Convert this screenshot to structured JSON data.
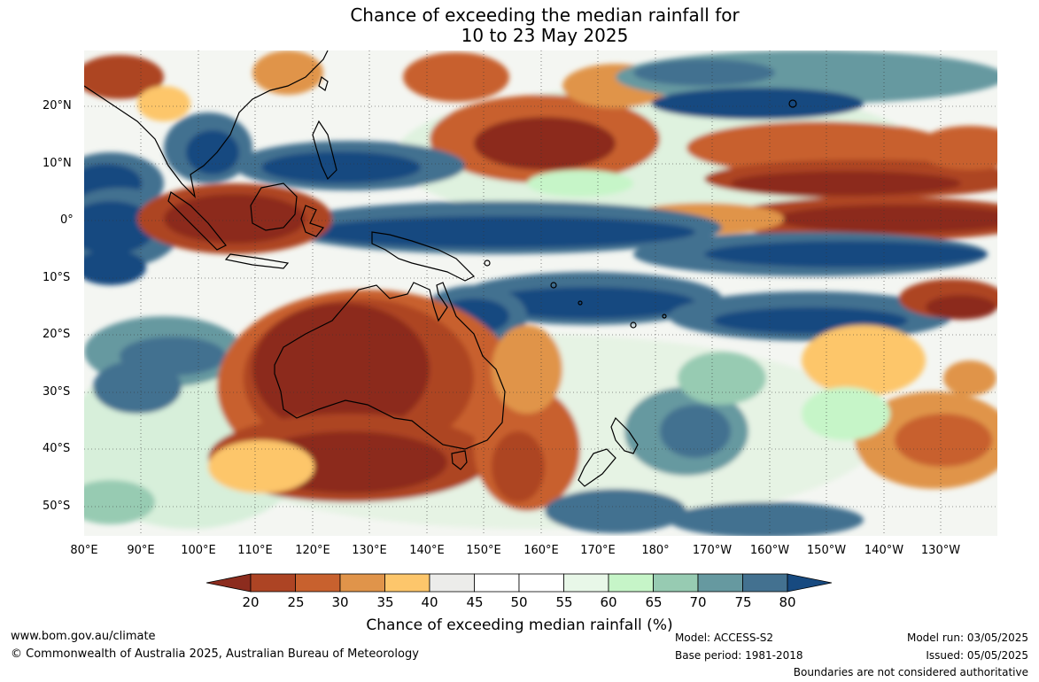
{
  "title": {
    "line1": "Chance of exceeding the median rainfall for",
    "line2": "10 to 23 May 2025"
  },
  "map": {
    "lat_labels": [
      "20°N",
      "10°N",
      "0°",
      "10°S",
      "20°S",
      "30°S",
      "40°S",
      "50°S"
    ],
    "lon_labels": [
      "80°E",
      "90°E",
      "100°E",
      "110°E",
      "120°E",
      "130°E",
      "140°E",
      "150°E",
      "160°E",
      "170°E",
      "180°",
      "170°W",
      "160°W",
      "150°W",
      "140°W",
      "130°W"
    ]
  },
  "colorbar": {
    "ticks": [
      "20",
      "25",
      "30",
      "35",
      "40",
      "45",
      "50",
      "55",
      "60",
      "65",
      "70",
      "75",
      "80"
    ],
    "colors": [
      "#8c2c1e",
      "#ad4424",
      "#c8612e",
      "#e0944a",
      "#fdc66b",
      "#ececea",
      "#ffffff",
      "#ffffff",
      "#e8f7e8",
      "#c6f5c8",
      "#97cbb2",
      "#6699a0",
      "#437190",
      "#174a80"
    ],
    "title": "Chance of exceeding median rainfall (%)"
  },
  "footer": {
    "website": "www.bom.gov.au/climate",
    "copyright": "© Commonwealth of Australia 2025, Australian Bureau of Meteorology",
    "model": "Model: ACCESS-S2",
    "base_period": "Base period: 1981-2018",
    "model_run": "Model run: 03/05/2025",
    "issued": "Issued: 05/05/2025",
    "disclaimer": "Boundaries are not considered authoritative"
  }
}
